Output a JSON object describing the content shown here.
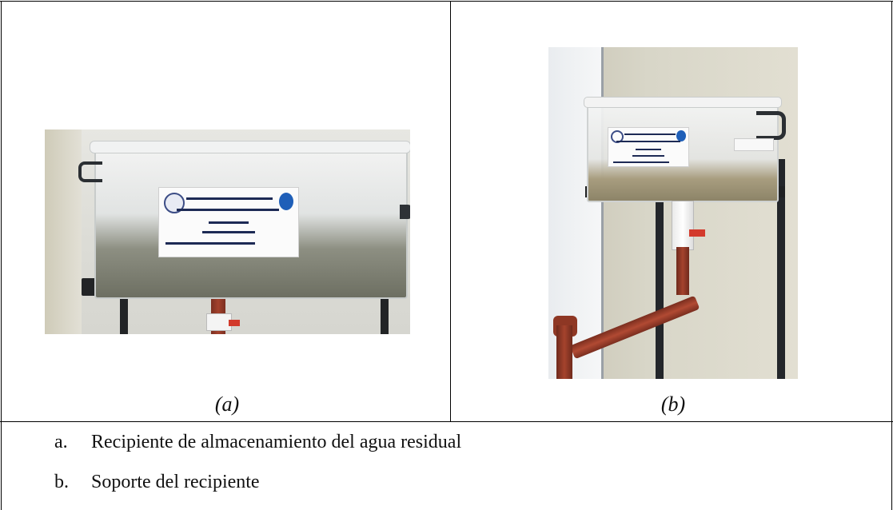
{
  "figure": {
    "panel_a": {
      "caption": "(a)",
      "label_text": "UNIVERSIDAD TÉCNICA DE AMBATO · FACULTAD DE INGENIERÍA CIVIL Y MECÁNICA · INGENIERÍA CIVIL · Filtro a Escala de Laboratorio · Autora: Molina García Mishel Estefanía"
    },
    "panel_b": {
      "caption": "(b)"
    }
  },
  "legend": {
    "items": [
      {
        "marker": "a.",
        "text": "Recipiente de almacenamiento del agua residual"
      },
      {
        "marker": "b.",
        "text": "Soporte del recipiente"
      }
    ]
  }
}
